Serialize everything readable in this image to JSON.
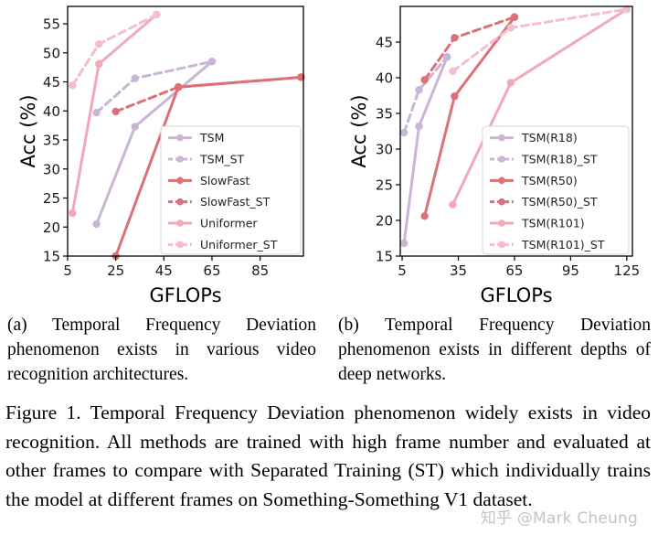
{
  "chart_data": [
    {
      "id": "a",
      "type": "line",
      "xlabel": "GFLOPs",
      "ylabel": "Acc (%)",
      "xlim": [
        5,
        103
      ],
      "ylim": [
        15,
        58
      ],
      "xticks": [
        5,
        25,
        45,
        65,
        85
      ],
      "yticks": [
        15,
        20,
        25,
        30,
        35,
        40,
        45,
        50,
        55
      ],
      "legend_position": "lower-right",
      "series": [
        {
          "name": "TSM",
          "color": "#cbb5d4",
          "dash": false,
          "x": [
            17,
            33,
            65
          ],
          "y": [
            20.5,
            37.3,
            48.5
          ]
        },
        {
          "name": "TSM_ST",
          "color": "#cbb5d4",
          "dash": true,
          "x": [
            17,
            33,
            65
          ],
          "y": [
            39.7,
            45.6,
            48.5
          ]
        },
        {
          "name": "SlowFast",
          "color": "#dd6f76",
          "dash": false,
          "x": [
            25,
            51,
            102
          ],
          "y": [
            15.0,
            44.1,
            45.8
          ]
        },
        {
          "name": "SlowFast_ST",
          "color": "#dd6f76",
          "dash": true,
          "x": [
            25,
            51,
            102
          ],
          "y": [
            39.9,
            44.1,
            45.8
          ]
        },
        {
          "name": "Uniformer",
          "color": "#f2a9b7",
          "dash": false,
          "x": [
            7,
            18,
            42
          ],
          "y": [
            22.4,
            48.1,
            56.6
          ]
        },
        {
          "name": "Uniformer_ST",
          "color": "#f2bfca",
          "dash": true,
          "x": [
            7,
            18,
            42
          ],
          "y": [
            44.4,
            51.5,
            56.6
          ]
        }
      ]
    },
    {
      "id": "b",
      "type": "line",
      "xlabel": "GFLOPs",
      "ylabel": "Acc (%)",
      "xlim": [
        4,
        128
      ],
      "ylim": [
        15,
        50
      ],
      "xticks": [
        5,
        35,
        65,
        95,
        125
      ],
      "yticks": [
        15,
        20,
        25,
        30,
        35,
        40,
        45
      ],
      "legend_position": "lower-right",
      "series": [
        {
          "name": "TSM(R18)",
          "color": "#cbb5d4",
          "dash": false,
          "x": [
            6,
            14,
            29
          ],
          "y": [
            16.8,
            33.2,
            42.9
          ]
        },
        {
          "name": "TSM(R18)_ST",
          "color": "#cbb5d4",
          "dash": true,
          "x": [
            6,
            14,
            29
          ],
          "y": [
            32.3,
            38.3,
            42.9
          ]
        },
        {
          "name": "TSM(R50)",
          "color": "#dd6f76",
          "dash": false,
          "x": [
            17,
            33,
            65
          ],
          "y": [
            20.6,
            37.4,
            48.5
          ]
        },
        {
          "name": "TSM(R50)_ST",
          "color": "#dd6f76",
          "dash": true,
          "x": [
            17,
            33,
            65
          ],
          "y": [
            39.7,
            45.6,
            48.5
          ]
        },
        {
          "name": "TSM(R101)",
          "color": "#f2a9b7",
          "dash": false,
          "x": [
            32,
            63,
            125
          ],
          "y": [
            22.2,
            39.3,
            49.6
          ]
        },
        {
          "name": "TSM(R101)_ST",
          "color": "#f2bfca",
          "dash": true,
          "x": [
            32,
            63,
            125
          ],
          "y": [
            40.9,
            47.0,
            49.6
          ]
        }
      ]
    }
  ],
  "captions": {
    "a": "(a) Temporal Frequency Deviation phenomenon exists in various video recognition architectures.",
    "b": "(b) Temporal Frequency Devia­tion phenomenon exists in different depths of deep networks.",
    "figure": "Figure 1.  Temporal Frequency Deviation phenomenon widely exists in video recognition. All methods are trained with high frame number and evaluated at other frames to compare with Sep­arated Training (ST) which individually trains the model at differ­ent frames on Something-Something V1 dataset."
  },
  "watermark": "知乎 @Mark Cheung"
}
